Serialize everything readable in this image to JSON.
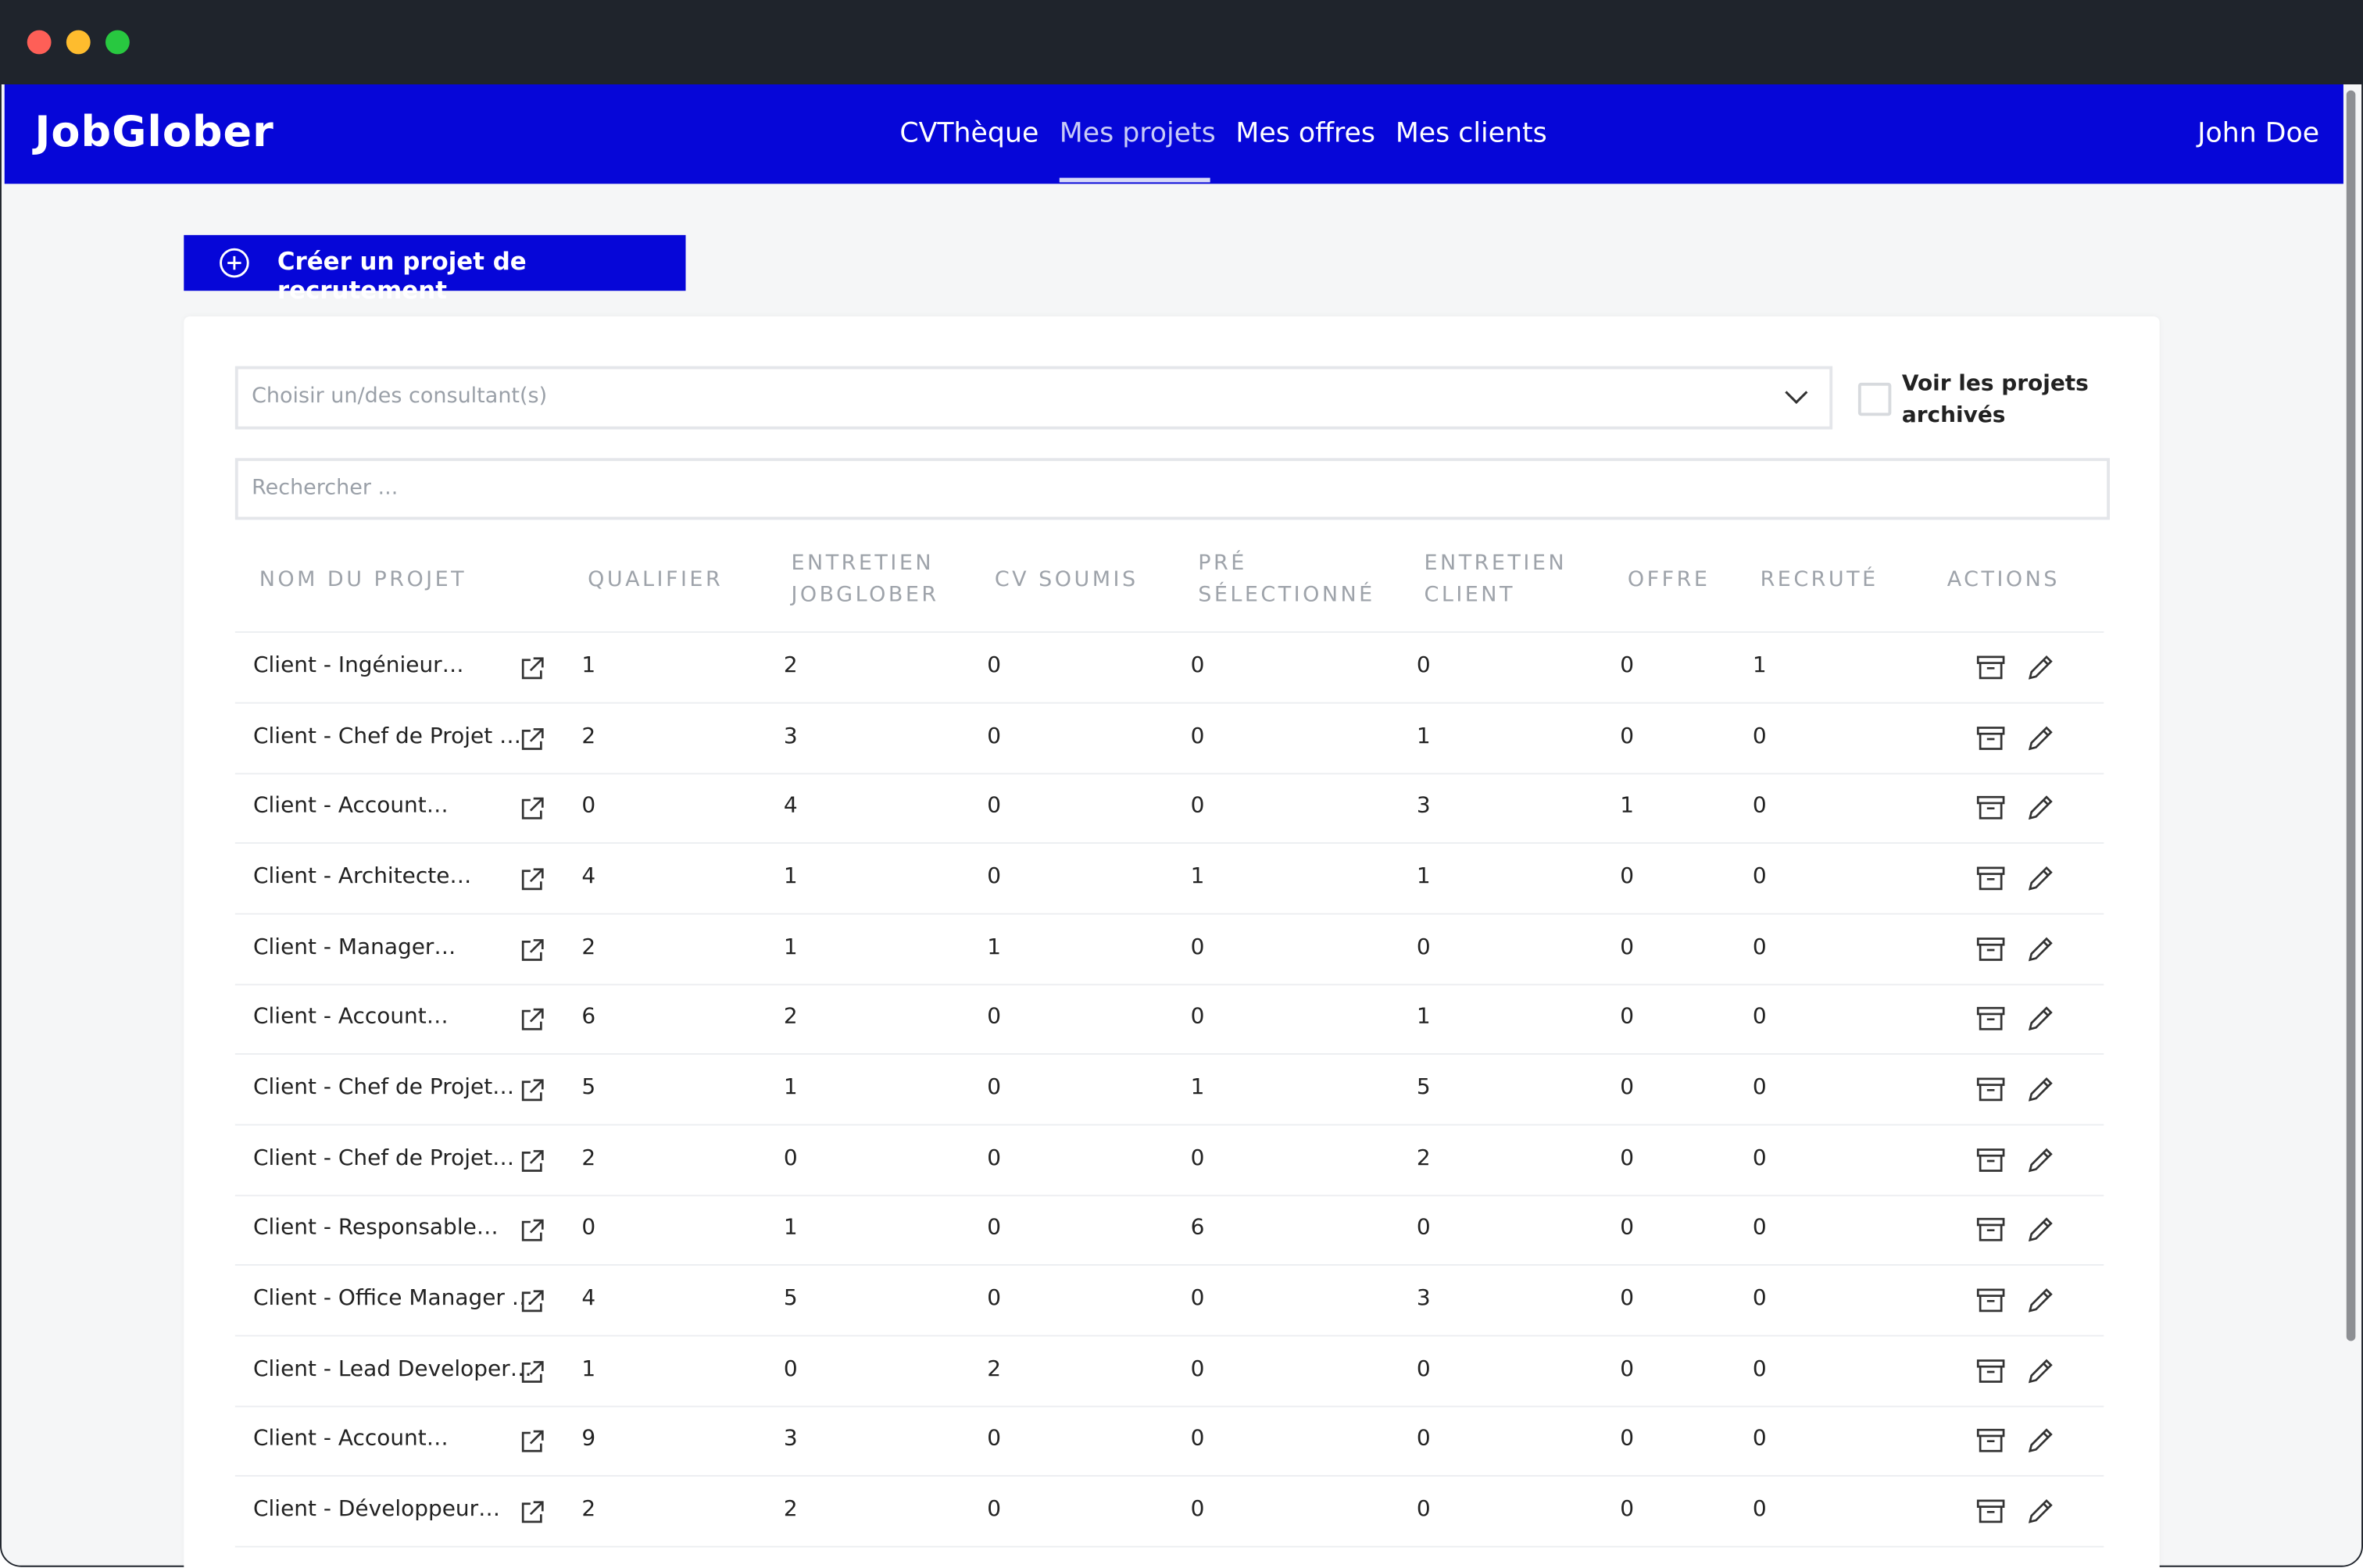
{
  "header": {
    "logo": "JobGlober",
    "nav": [
      "CVThèque",
      "Mes projets",
      "Mes offres",
      "Mes clients"
    ],
    "active_nav": 1,
    "user": "John Doe"
  },
  "create_button": "Créer un projet de recrutement",
  "filters": {
    "consultant_placeholder": "Choisir un/des consultant(s)",
    "archived_label": "Voir les projets archivés",
    "search_placeholder": "Rechercher ..."
  },
  "table": {
    "columns": [
      "NOM DU PROJET",
      "QUALIFIER",
      "ENTRETIEN JOBGLOBER",
      "CV SOUMIS",
      "PRÉ SÉLECTIONNÉ",
      "ENTRETIEN CLIENT",
      "OFFRE",
      "RECRUTÉ",
      "ACTIONS"
    ],
    "rows": [
      [
        "Client - Ingénieur…",
        1,
        2,
        0,
        0,
        0,
        0,
        1
      ],
      [
        "Client - Chef de Projet …",
        2,
        3,
        0,
        0,
        1,
        0,
        0
      ],
      [
        "Client - Account…",
        0,
        4,
        0,
        0,
        3,
        1,
        0
      ],
      [
        "Client - Architecte…",
        4,
        1,
        0,
        1,
        1,
        0,
        0
      ],
      [
        "Client - Manager…",
        2,
        1,
        1,
        0,
        0,
        0,
        0
      ],
      [
        "Client - Account…",
        6,
        2,
        0,
        0,
        1,
        0,
        0
      ],
      [
        "Client - Chef de Projet…",
        5,
        1,
        0,
        1,
        5,
        0,
        0
      ],
      [
        "Client - Chef de Projet…",
        2,
        0,
        0,
        0,
        2,
        0,
        0
      ],
      [
        "Client - Responsable…",
        0,
        1,
        0,
        6,
        0,
        0,
        0
      ],
      [
        "Client - Office Manager …",
        4,
        5,
        0,
        0,
        3,
        0,
        0
      ],
      [
        "Client - Lead Developer…",
        1,
        0,
        2,
        0,
        0,
        0,
        0
      ],
      [
        "Client - Account…",
        9,
        3,
        0,
        0,
        0,
        0,
        0
      ],
      [
        "Client - Développeur…",
        2,
        2,
        0,
        0,
        0,
        0,
        0
      ]
    ]
  }
}
